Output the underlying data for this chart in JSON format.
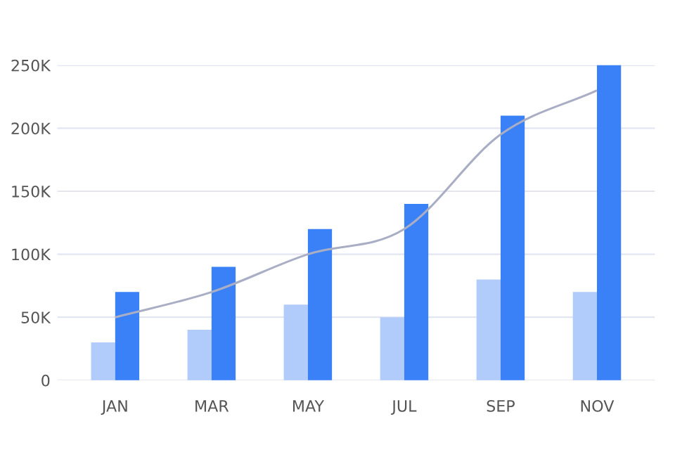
{
  "chart_data": {
    "type": "bar",
    "categories": [
      "JAN",
      "MAR",
      "MAY",
      "JUL",
      "SEP",
      "NOV"
    ],
    "series": [
      {
        "color": "#b1cbfb",
        "values": [
          30000,
          40000,
          60000,
          50000,
          80000,
          70000
        ]
      },
      {
        "color": "#3a80f7",
        "values": [
          70000,
          90000,
          120000,
          140000,
          210000,
          250000
        ]
      },
      {
        "type": "line",
        "color": "#a9aec4",
        "values": [
          50000,
          70000,
          100000,
          120000,
          195000,
          230000
        ]
      }
    ],
    "ylim": [
      0,
      250000
    ],
    "yticks": [
      {
        "value": 0,
        "label": "0"
      },
      {
        "value": 50000,
        "label": "50K"
      },
      {
        "value": 100000,
        "label": "100K"
      },
      {
        "value": 150000,
        "label": "150K"
      },
      {
        "value": 200000,
        "label": "200K"
      },
      {
        "value": 250000,
        "label": "250K"
      }
    ],
    "grid": "y",
    "marker": "none"
  }
}
